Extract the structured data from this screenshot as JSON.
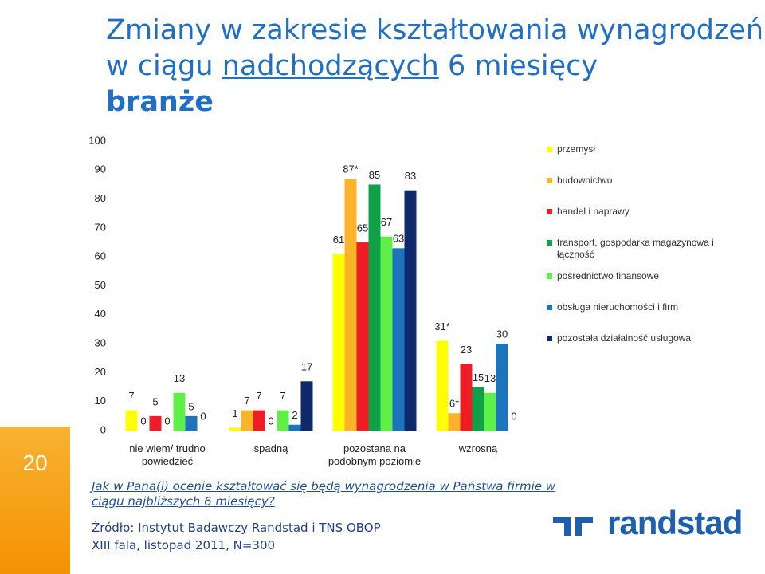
{
  "title_line1": "Zmiany w zakresie kształtowania wynagrodzeń",
  "title_line2_a": "w ciągu ",
  "title_line2_b": "nadchodzących",
  "title_line2_c": " 6 miesięcy",
  "title_line3": "branże",
  "page_number": "20",
  "question": "Jak w Pana(i) ocenie kształtować się będą wynagrodzenia w Państwa firmie w ciągu najbliższych 6 miesięcy?",
  "source_line1": "Źródło: Instytut Badawczy Randstad i TNS OBOP",
  "source_line2": "XIII fala, listopad 2011, N=300",
  "logo": "randstad",
  "chart_data": {
    "type": "bar",
    "categories": [
      "nie wiem/ trudno powiedzieć",
      "spadną",
      "pozostana na podobnym poziomie",
      "wzrosną"
    ],
    "series": [
      {
        "name": "przemysł",
        "color": "#ffff00",
        "values": [
          7,
          1,
          61,
          31
        ],
        "value_labels": [
          "7",
          "1",
          "61",
          "31*"
        ]
      },
      {
        "name": "budownictwo",
        "color": "#fbb42a",
        "values": [
          0,
          7,
          87,
          6
        ],
        "value_labels": [
          "0",
          "7",
          "87*",
          "6*"
        ]
      },
      {
        "name": "handel i naprawy",
        "color": "#ee1c25",
        "values": [
          5,
          7,
          65,
          23
        ]
      },
      {
        "name": "transport, gospodarka magazynowa i łączność",
        "color": "#0fa04a",
        "values": [
          0,
          0,
          85,
          15
        ]
      },
      {
        "name": "pośrednictwo finansowe",
        "color": "#5ef046",
        "values": [
          13,
          7,
          67,
          13
        ]
      },
      {
        "name": "obsługa nieruchomości i firm",
        "color": "#1c75bc",
        "values": [
          5,
          2,
          63,
          30
        ]
      },
      {
        "name": "pozostała działalność usługowa",
        "color": "#0f2a6b",
        "values": [
          0,
          17,
          83,
          0
        ]
      }
    ],
    "ylim": [
      0,
      100
    ],
    "yticks": [
      0,
      10,
      20,
      30,
      40,
      50,
      60,
      70,
      80,
      90,
      100
    ],
    "grid": false
  }
}
